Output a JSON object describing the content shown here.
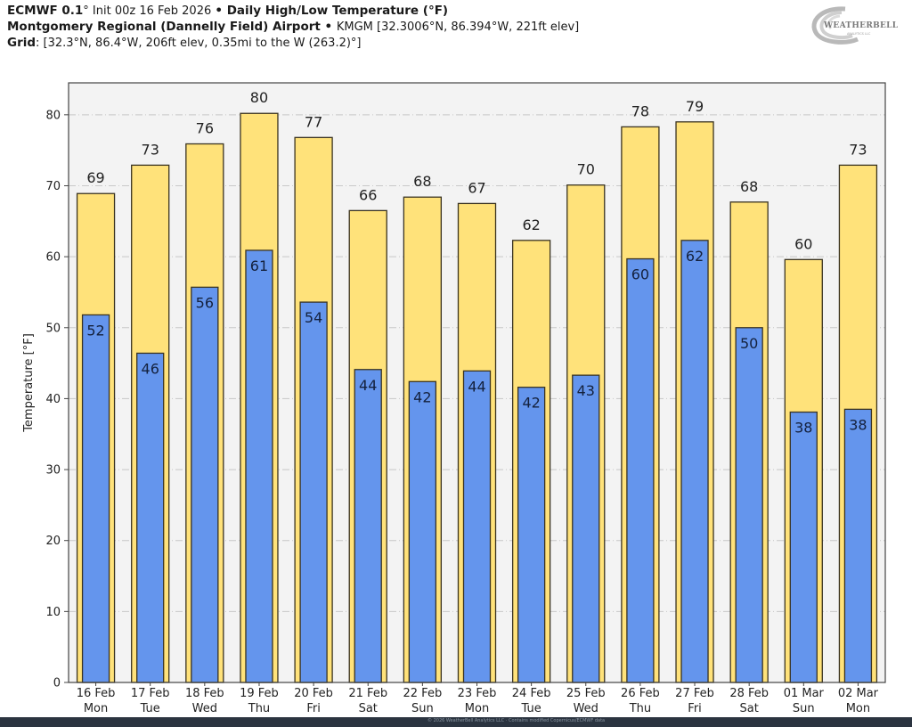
{
  "header": {
    "line1": {
      "model": "ECMWF 0.1",
      "model_deg": "°",
      "init": " Init 00z 16 Feb 2026 ",
      "sep": "•",
      "product": " Daily High/Low Temperature (°F)"
    },
    "line2": {
      "station": "Montgomery Regional (Dannelly Field) Airport",
      "sep": " • ",
      "details": "KMGM [32.3006°N, 86.394°W, 221ft elev]"
    },
    "line3": {
      "label": "Grid",
      "details": ": [32.3°N, 86.4°W, 206ft elev, 0.35mi to the W (263.2)°]"
    }
  },
  "logo": {
    "text": "WEATHERBELL",
    "sub": "ANALYTICS LLC"
  },
  "footer": {
    "text": "© 2026 WeatherBell Analytics LLC · Contains modified Copernicus/ECMWF data"
  },
  "colors": {
    "high": "#FFE27A",
    "low": "#6495ED",
    "edge": "#3a3320",
    "plot_bg": "#f3f3f3",
    "grid": "#c8c8c8"
  },
  "chart_data": {
    "type": "bar",
    "title": "Daily High/Low Temperature (°F)",
    "xlabel": "",
    "ylabel": "Temperature [°F]",
    "ylim": [
      0,
      84.5
    ],
    "yticks": [
      0,
      10,
      20,
      30,
      40,
      50,
      60,
      70,
      80
    ],
    "grid": true,
    "categories": [
      [
        "16 Feb",
        "Mon"
      ],
      [
        "17 Feb",
        "Tue"
      ],
      [
        "18 Feb",
        "Wed"
      ],
      [
        "19 Feb",
        "Thu"
      ],
      [
        "20 Feb",
        "Fri"
      ],
      [
        "21 Feb",
        "Sat"
      ],
      [
        "22 Feb",
        "Sun"
      ],
      [
        "23 Feb",
        "Mon"
      ],
      [
        "24 Feb",
        "Tue"
      ],
      [
        "25 Feb",
        "Wed"
      ],
      [
        "26 Feb",
        "Thu"
      ],
      [
        "27 Feb",
        "Fri"
      ],
      [
        "28 Feb",
        "Sat"
      ],
      [
        "01 Mar",
        "Sun"
      ],
      [
        "02 Mar",
        "Mon"
      ]
    ],
    "series": [
      {
        "name": "High",
        "values": [
          68.9,
          72.9,
          75.9,
          80.2,
          76.8,
          66.5,
          68.4,
          67.5,
          62.3,
          70.1,
          78.3,
          79.0,
          67.7,
          59.6,
          72.9
        ],
        "labels": [
          "69",
          "73",
          "76",
          "80",
          "77",
          "66",
          "68",
          "67",
          "62",
          "70",
          "78",
          "79",
          "68",
          "60",
          "73"
        ]
      },
      {
        "name": "Low",
        "values": [
          51.8,
          46.4,
          55.7,
          60.9,
          53.6,
          44.1,
          42.4,
          43.9,
          41.6,
          43.3,
          59.7,
          62.3,
          50.0,
          38.1,
          38.5
        ],
        "labels": [
          "52",
          "46",
          "56",
          "61",
          "54",
          "44",
          "42",
          "44",
          "42",
          "43",
          "60",
          "62",
          "50",
          "38",
          "38"
        ]
      }
    ]
  }
}
